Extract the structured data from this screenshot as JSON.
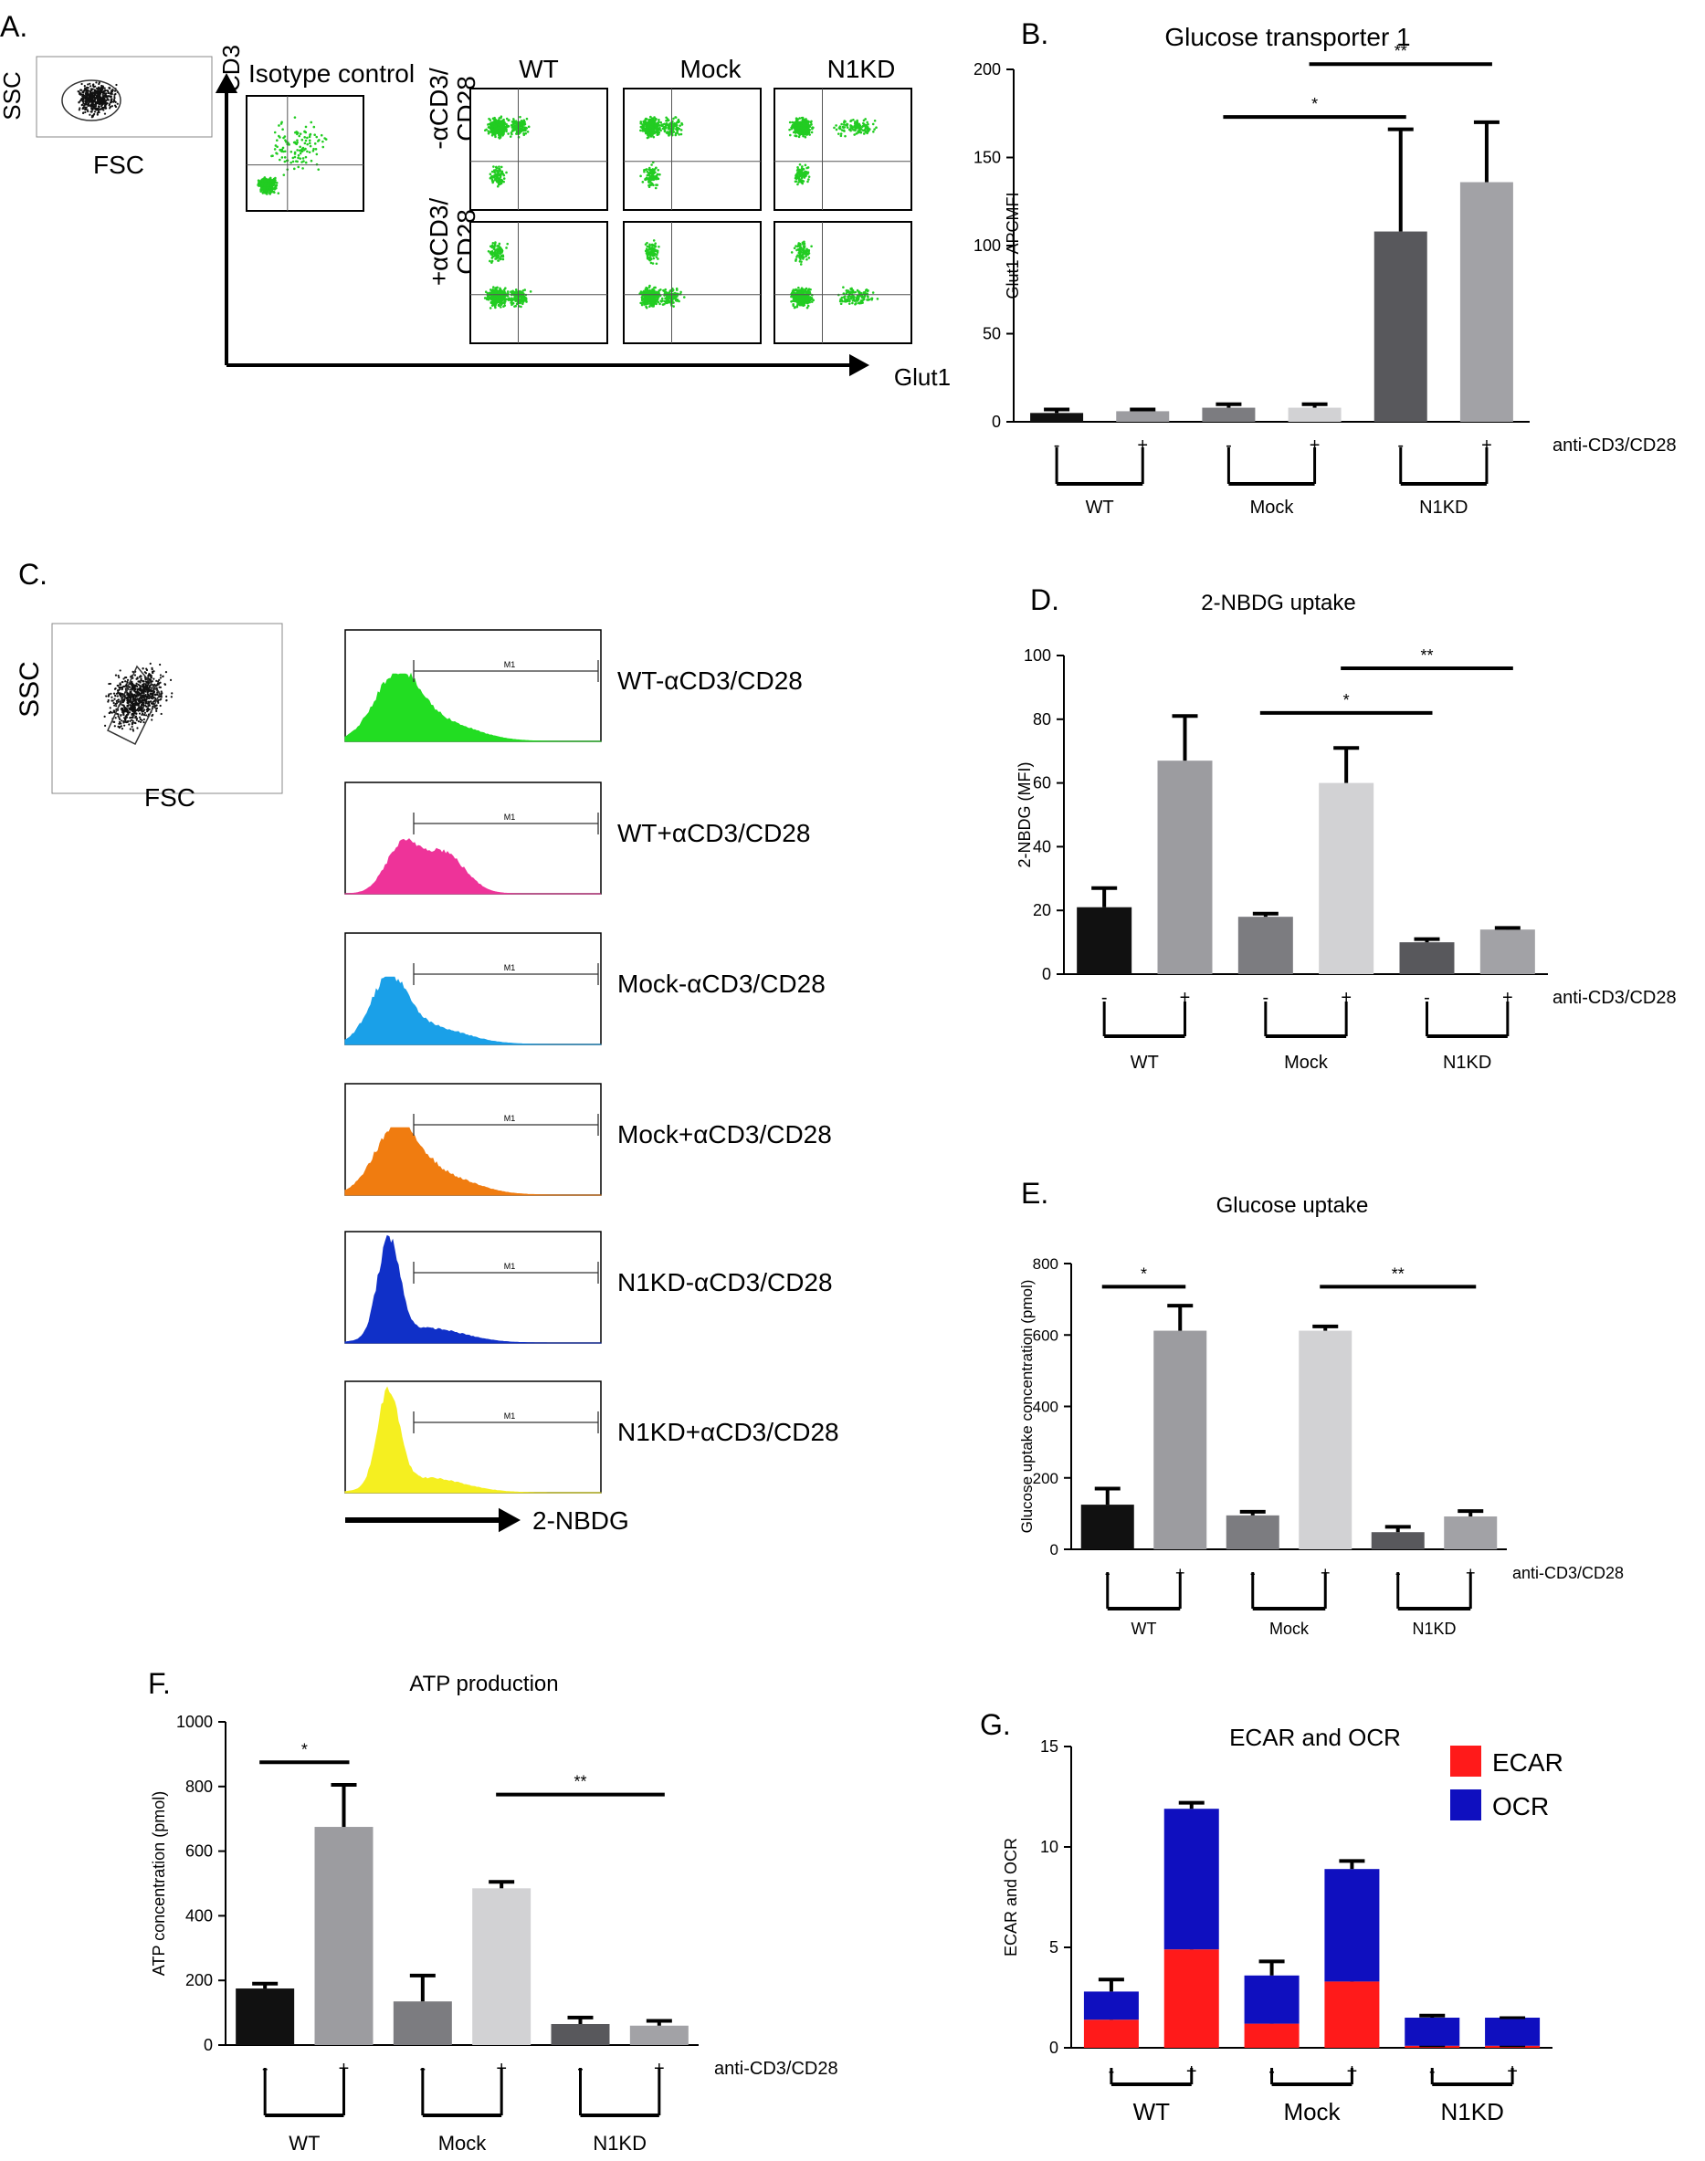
{
  "panel_a": {
    "letter": "A.",
    "ssc": "SSC",
    "fsc": "FSC",
    "cd3": "CD3",
    "isotype": "Isotype control",
    "cols": [
      "WT",
      "Mock",
      "N1KD"
    ],
    "row_minus": [
      "-αCD3/",
      "CD28"
    ],
    "row_plus": [
      "+αCD3/",
      "CD28"
    ],
    "glut1": "Glut1",
    "colors": {
      "dots": "#22cc22",
      "gate": "#000000"
    }
  },
  "panel_c": {
    "letter": "C.",
    "ssc": "SSC",
    "fsc": "FSC",
    "arrow_label": "2-NBDG",
    "gate_label": "M1",
    "histograms": [
      {
        "label": "WT-αCD3/CD28",
        "color": "#22dd22"
      },
      {
        "label": "WT+αCD3/CD28",
        "color": "#ee3399"
      },
      {
        "label": "Mock-αCD3/CD28",
        "color": "#1aa0e8"
      },
      {
        "label": "Mock+αCD3/CD28",
        "color": "#f07c10"
      },
      {
        "label": "N1KD-αCD3/CD28",
        "color": "#1030c8"
      },
      {
        "label": "N1KD+αCD3/CD28",
        "color": "#f5ef20"
      }
    ]
  },
  "chart_data": [
    {
      "id": "B",
      "letter": "B.",
      "type": "bar",
      "title": "Glucose transporter 1",
      "ylabel": "Glut1-APCMFI",
      "ylim": [
        0,
        200
      ],
      "yticks": [
        0,
        50,
        100,
        150,
        200
      ],
      "signs": [
        "-",
        "+",
        "-",
        "+",
        "-",
        "+"
      ],
      "groups": [
        "WT",
        "Mock",
        "N1KD"
      ],
      "treatment_label": "anti-CD3/CD28",
      "values": [
        5,
        6,
        8,
        8,
        108,
        136
      ],
      "errors": [
        2,
        1,
        2,
        2,
        58,
        34
      ],
      "colors": [
        "#111111",
        "#9c9ca0",
        "#7c7c80",
        "#d2d2d4",
        "#58585c",
        "#a2a2a6"
      ],
      "significance": [
        {
          "label": "*",
          "from": 2,
          "to": 4,
          "y": 173
        },
        {
          "label": "**",
          "from": 3,
          "to": 5,
          "y": 203
        }
      ]
    },
    {
      "id": "D",
      "letter": "D.",
      "type": "bar",
      "title": "2-NBDG uptake",
      "ylabel": "2-NBDG (MFI)",
      "ylim": [
        0,
        100
      ],
      "yticks": [
        0,
        20,
        40,
        60,
        80,
        100
      ],
      "signs": [
        "-",
        "+",
        "-",
        "+",
        "-",
        "+"
      ],
      "groups": [
        "WT",
        "Mock",
        "N1KD"
      ],
      "treatment_label": "anti-CD3/CD28",
      "values": [
        21,
        67,
        18,
        60,
        10,
        14
      ],
      "errors": [
        6,
        14,
        1,
        11,
        1,
        0.5
      ],
      "colors": [
        "#111111",
        "#9c9ca0",
        "#7c7c80",
        "#d2d2d4",
        "#58585c",
        "#a2a2a6"
      ],
      "significance": [
        {
          "label": "*",
          "from": 2,
          "to": 4,
          "y": 82
        },
        {
          "label": "**",
          "from": 3,
          "to": 5,
          "y": 96
        }
      ]
    },
    {
      "id": "E",
      "letter": "E.",
      "type": "bar",
      "title": "Glucose uptake",
      "ylabel": "Glucose uptake concentration (pmol)",
      "ylim": [
        0,
        800
      ],
      "yticks": [
        0,
        200,
        400,
        600,
        800
      ],
      "signs": [
        "-",
        "+",
        "-",
        "+",
        "-",
        "+"
      ],
      "groups": [
        "WT",
        "Mock",
        "N1KD"
      ],
      "treatment_label": "anti-CD3/CD28",
      "values": [
        125,
        612,
        95,
        612,
        48,
        92
      ],
      "errors": [
        45,
        70,
        10,
        12,
        15,
        15
      ],
      "colors": [
        "#111111",
        "#9c9ca0",
        "#7c7c80",
        "#d2d2d4",
        "#58585c",
        "#a2a2a6"
      ],
      "significance": [
        {
          "label": "*",
          "from": 0,
          "to": 1,
          "y": 735
        },
        {
          "label": "**",
          "from": 3,
          "to": 5,
          "y": 735
        }
      ]
    },
    {
      "id": "F",
      "letter": "F.",
      "type": "bar",
      "title": "ATP production",
      "ylabel": "ATP concentration (pmol)",
      "ylim": [
        0,
        1000
      ],
      "yticks": [
        0,
        200,
        400,
        600,
        800,
        1000
      ],
      "signs": [
        "-",
        "+",
        "-",
        "+",
        "-",
        "+"
      ],
      "groups": [
        "WT",
        "Mock",
        "N1KD"
      ],
      "treatment_label": "anti-CD3/CD28",
      "values": [
        175,
        675,
        135,
        485,
        65,
        60
      ],
      "errors": [
        15,
        130,
        80,
        20,
        20,
        15
      ],
      "colors": [
        "#111111",
        "#9c9ca0",
        "#7c7c80",
        "#d2d2d4",
        "#58585c",
        "#a2a2a6"
      ],
      "significance": [
        {
          "label": "*",
          "from": 0,
          "to": 1,
          "y": 875
        },
        {
          "label": "**",
          "from": 3,
          "to": 5,
          "y": 775
        }
      ]
    },
    {
      "id": "G",
      "letter": "G.",
      "type": "bar",
      "stacked": true,
      "title": "ECAR and OCR",
      "ylabel": "ECAR and OCR",
      "ylim": [
        0,
        15
      ],
      "yticks": [
        0,
        5,
        10,
        15
      ],
      "signs": [
        "-",
        "+",
        "-",
        "+",
        "-",
        "+"
      ],
      "groups": [
        "WT",
        "Mock",
        "N1KD"
      ],
      "series": [
        {
          "name": "ECAR",
          "color": "#ff1a1a",
          "values": [
            1.4,
            4.9,
            1.2,
            3.3,
            0.1,
            0.1
          ],
          "errors": [
            0.3,
            0.9,
            0.15,
            0.8,
            0,
            0
          ]
        },
        {
          "name": "OCR",
          "color": "#0f0fbf",
          "values": [
            1.4,
            7.0,
            2.4,
            5.6,
            1.4,
            1.4
          ],
          "errors": [
            0.6,
            0.3,
            0.7,
            0.4,
            0.1,
            0
          ]
        }
      ]
    }
  ]
}
